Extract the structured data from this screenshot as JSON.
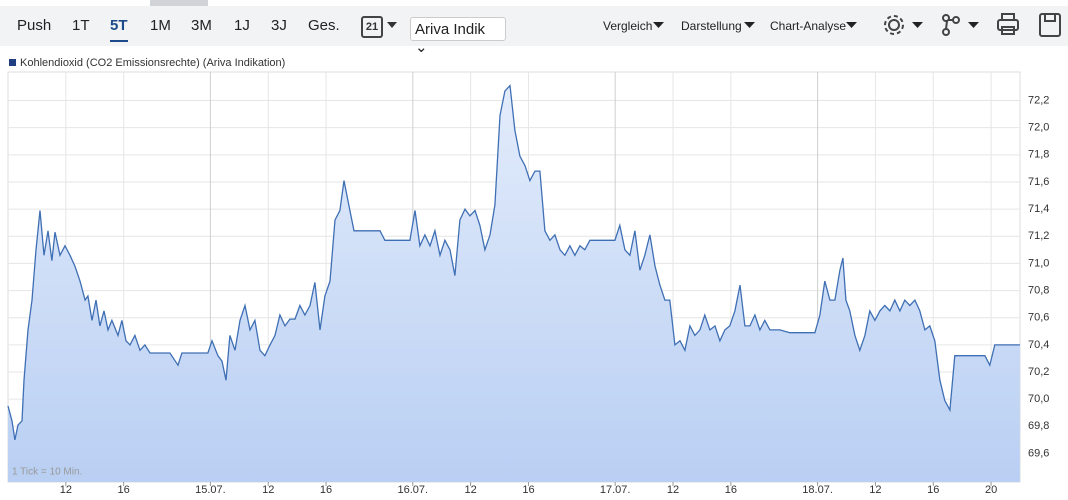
{
  "toolbar": {
    "periods": [
      "Push",
      "1T",
      "5T",
      "1M",
      "3M",
      "1J",
      "3J",
      "Ges."
    ],
    "active_period": "5T",
    "calendar_day": "21",
    "source_select": "Ariva Indik",
    "menus": [
      "Vergleich",
      "Darstellung",
      "Chart-Analyse"
    ]
  },
  "chart_data": {
    "type": "area",
    "footnote": "1 Tick = 10 Min.",
    "legend": "top-left",
    "grid": true,
    "xlim": [
      0,
      70
    ],
    "ylim": [
      69.39,
      72.41
    ],
    "xticks": [
      {
        "value": 4,
        "label": "12"
      },
      {
        "value": 8,
        "label": "16"
      },
      {
        "value": 14,
        "label": "15.07."
      },
      {
        "value": 18,
        "label": "12"
      },
      {
        "value": 22,
        "label": "16"
      },
      {
        "value": 28,
        "label": "16.07."
      },
      {
        "value": 32,
        "label": "12"
      },
      {
        "value": 36,
        "label": "16"
      },
      {
        "value": 42,
        "label": "17.07."
      },
      {
        "value": 46,
        "label": "12"
      },
      {
        "value": 50,
        "label": "16"
      },
      {
        "value": 56,
        "label": "18.07."
      },
      {
        "value": 60,
        "label": "12"
      },
      {
        "value": 64,
        "label": "16"
      },
      {
        "value": 68,
        "label": "20"
      }
    ],
    "yticks": [
      {
        "value": 69.6,
        "label": "69,6"
      },
      {
        "value": 69.8,
        "label": "69,8"
      },
      {
        "value": 70.0,
        "label": "70,0"
      },
      {
        "value": 70.2,
        "label": "70,2"
      },
      {
        "value": 70.4,
        "label": "70,4"
      },
      {
        "value": 70.6,
        "label": "70,6"
      },
      {
        "value": 70.8,
        "label": "70,8"
      },
      {
        "value": 71.0,
        "label": "71,0"
      },
      {
        "value": 71.2,
        "label": "71,2"
      },
      {
        "value": 71.4,
        "label": "71,4"
      },
      {
        "value": 71.6,
        "label": "71,6"
      },
      {
        "value": 71.8,
        "label": "71,8"
      },
      {
        "value": 72.0,
        "label": "72,0"
      },
      {
        "value": 72.2,
        "label": "72,2"
      }
    ],
    "x": [
      0,
      0.28,
      0.48,
      0.69,
      0.97,
      1.11,
      1.38,
      1.66,
      1.94,
      2.21,
      2.49,
      2.77,
      3.04,
      3.25,
      3.6,
      3.94,
      4.29,
      4.63,
      4.98,
      5.33,
      5.53,
      5.81,
      6.09,
      6.36,
      6.64,
      6.92,
      7.19,
      7.61,
      7.88,
      8.16,
      8.44,
      8.78,
      9.13,
      9.47,
      9.82,
      10.51,
      11.2,
      11.76,
      12.03,
      12.59,
      13.28,
      13.83,
      14.11,
      14.52,
      14.8,
      15.08,
      15.35,
      15.7,
      16.05,
      16.39,
      16.74,
      17.08,
      17.43,
      17.77,
      18.12,
      18.47,
      18.81,
      19.16,
      19.5,
      19.85,
      20.19,
      20.54,
      20.89,
      21.23,
      21.58,
      21.92,
      22.27,
      22.62,
      22.96,
      23.24,
      23.65,
      23.93,
      24.34,
      25.04,
      25.73,
      26.07,
      26.76,
      27.8,
      28.15,
      28.49,
      28.84,
      29.19,
      29.53,
      29.88,
      30.22,
      30.57,
      30.91,
      31.26,
      31.61,
      31.95,
      32.3,
      32.64,
      32.99,
      33.34,
      33.68,
      34.03,
      34.37,
      34.72,
      35.06,
      35.41,
      35.76,
      36.1,
      36.45,
      36.79,
      37.14,
      37.48,
      37.83,
      38.18,
      38.52,
      38.87,
      39.21,
      39.56,
      39.9,
      40.25,
      40.6,
      41.29,
      41.98,
      42.32,
      42.67,
      43.02,
      43.36,
      43.71,
      44.05,
      44.4,
      44.75,
      45.09,
      45.44,
      45.78,
      46.13,
      46.48,
      46.82,
      47.17,
      47.51,
      47.86,
      48.2,
      48.55,
      48.9,
      49.24,
      49.59,
      49.93,
      50.28,
      50.63,
      50.97,
      51.32,
      51.66,
      52.01,
      52.35,
      52.7,
      53.39,
      54.08,
      54.78,
      55.81,
      56.16,
      56.5,
      56.85,
      57.2,
      57.54,
      57.75,
      57.96,
      58.23,
      58.58,
      58.92,
      59.27,
      59.61,
      59.96,
      60.31,
      60.65,
      61,
      61.34,
      61.69,
      62.03,
      62.38,
      62.73,
      63.07,
      63.42,
      63.76,
      64.11,
      64.46,
      64.8,
      65.15,
      65.49,
      65.84,
      66.19,
      66.88,
      67.57,
      67.91,
      68.26,
      68.95,
      69.99
    ],
    "series": [
      {
        "name": "Kohlendioxid (CO2 Emissionsrechte) (Ariva Indikation)",
        "color": "#3f6fb4",
        "values": [
          69.95,
          69.84,
          69.7,
          69.81,
          69.84,
          70.14,
          70.51,
          70.73,
          71.1,
          71.39,
          71.06,
          71.24,
          71.02,
          71.23,
          71.06,
          71.13,
          71.06,
          70.98,
          70.87,
          70.73,
          70.76,
          70.58,
          70.73,
          70.54,
          70.65,
          70.51,
          70.58,
          70.47,
          70.58,
          70.43,
          70.4,
          70.47,
          70.36,
          70.4,
          70.34,
          70.34,
          70.34,
          70.25,
          70.34,
          70.34,
          70.34,
          70.34,
          70.43,
          70.32,
          70.28,
          70.14,
          70.47,
          70.36,
          70.58,
          70.69,
          70.51,
          70.58,
          70.36,
          70.32,
          70.4,
          70.47,
          70.62,
          70.54,
          70.59,
          70.59,
          70.69,
          70.62,
          70.69,
          70.86,
          70.51,
          70.76,
          70.87,
          71.32,
          71.39,
          71.61,
          71.39,
          71.24,
          71.24,
          71.24,
          71.24,
          71.17,
          71.17,
          71.17,
          71.39,
          71.13,
          71.21,
          71.13,
          71.24,
          71.06,
          71.17,
          71.1,
          70.91,
          71.32,
          71.4,
          71.35,
          71.39,
          71.28,
          71.1,
          71.21,
          71.43,
          72.09,
          72.27,
          72.31,
          71.98,
          71.79,
          71.72,
          71.61,
          71.68,
          71.68,
          71.24,
          71.17,
          71.21,
          71.1,
          71.06,
          71.13,
          71.06,
          71.13,
          71.1,
          71.17,
          71.17,
          71.17,
          71.17,
          71.28,
          71.1,
          71.06,
          71.24,
          70.95,
          71.06,
          71.21,
          70.98,
          70.84,
          70.73,
          70.73,
          70.4,
          70.43,
          70.36,
          70.54,
          70.47,
          70.51,
          70.62,
          70.51,
          70.54,
          70.43,
          70.51,
          70.54,
          70.65,
          70.84,
          70.54,
          70.54,
          70.62,
          70.51,
          70.58,
          70.51,
          70.51,
          70.49,
          70.49,
          70.49,
          70.62,
          70.87,
          70.73,
          70.73,
          70.95,
          71.04,
          70.73,
          70.65,
          70.47,
          70.36,
          70.47,
          70.65,
          70.58,
          70.65,
          70.69,
          70.65,
          70.73,
          70.65,
          70.73,
          70.69,
          70.73,
          70.65,
          70.51,
          70.54,
          70.43,
          70.14,
          69.99,
          69.92,
          70.32,
          70.32,
          70.32,
          70.32,
          70.32,
          70.25,
          70.4,
          70.4,
          70.4
        ]
      }
    ]
  }
}
